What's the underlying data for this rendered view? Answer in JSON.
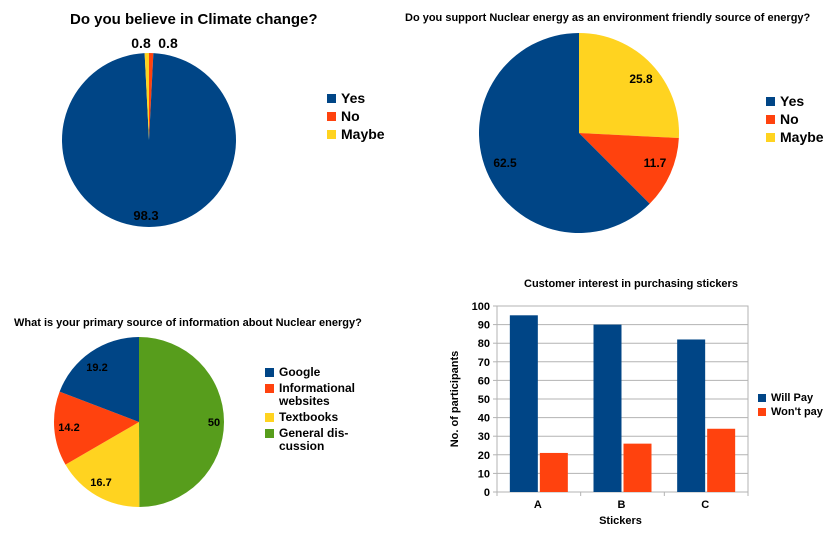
{
  "chart_data": [
    {
      "type": "pie",
      "title": "Do you believe in Climate change?",
      "categories": [
        "Yes",
        "No",
        "Maybe"
      ],
      "values": [
        98.3,
        0.8,
        0.8
      ],
      "value_labels": [
        "98.3",
        "0.8",
        "0.8"
      ],
      "colors": [
        "#004586",
        "#ff420e",
        "#ffd320"
      ],
      "legend_labels": [
        "Yes",
        "No",
        "Maybe"
      ],
      "legend": "right"
    },
    {
      "type": "pie",
      "title": "Do you support Nuclear energy as an environment friendly source of energy?",
      "categories": [
        "Yes",
        "No",
        "Maybe"
      ],
      "values": [
        62.5,
        11.7,
        25.8
      ],
      "value_labels": [
        "62.5",
        "11.7",
        "25.8"
      ],
      "colors": [
        "#004586",
        "#ff420e",
        "#ffd320"
      ],
      "legend_labels": [
        "Yes",
        "No",
        "Maybe"
      ],
      "legend": "right"
    },
    {
      "type": "pie",
      "title": "What is your primary source of information about Nuclear energy?",
      "categories": [
        "Google",
        "Informational websites",
        "Textbooks",
        "General discussion"
      ],
      "values": [
        19.2,
        14.2,
        16.7,
        50
      ],
      "value_labels": [
        "19.2",
        "14.2",
        "16.7",
        "50"
      ],
      "colors": [
        "#004586",
        "#ff420e",
        "#ffd320",
        "#579d1c"
      ],
      "legend_labels": [
        [
          "Google"
        ],
        [
          "Informational",
          "websites"
        ],
        [
          "Textbooks"
        ],
        [
          "General dis-",
          "cussion"
        ]
      ],
      "legend": "right"
    },
    {
      "type": "bar",
      "title": "Customer interest in purchasing stickers",
      "categories": [
        "A",
        "B",
        "C"
      ],
      "series": [
        {
          "name": "Will Pay",
          "values": [
            95,
            90,
            82
          ],
          "color": "#004586"
        },
        {
          "name": "Won't pay",
          "values": [
            21,
            26,
            34
          ],
          "color": "#ff420e"
        }
      ],
      "xlabel": "Stickers",
      "ylabel": "No. of participants",
      "ylim": [
        0,
        100
      ],
      "yticks": [
        "0",
        "10",
        "20",
        "30",
        "40",
        "50",
        "60",
        "70",
        "80",
        "90",
        "100"
      ],
      "grid": true,
      "legend": "right"
    }
  ]
}
